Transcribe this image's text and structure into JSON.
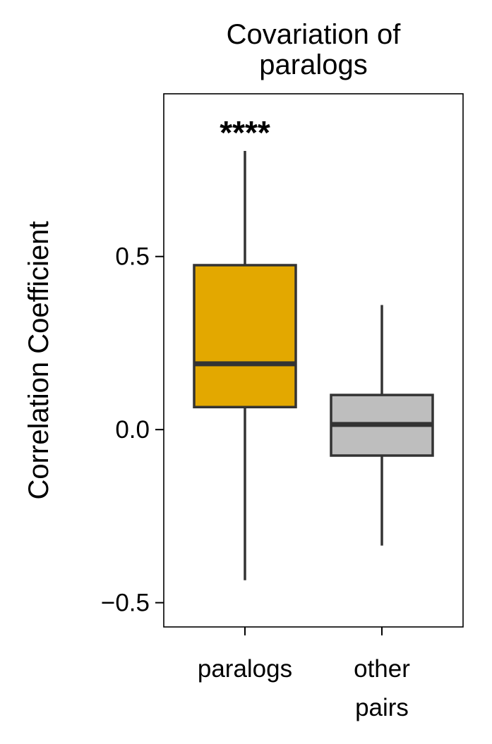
{
  "chart_data": {
    "type": "box",
    "title_lines": [
      "Covariation of",
      "paralogs"
    ],
    "xlabel": "",
    "ylabel": "Correlation Coefficient",
    "ylim": [
      -0.57,
      0.97
    ],
    "yticks": [
      -0.5,
      0.0,
      0.5
    ],
    "ytick_labels": [
      "−0.5",
      "0.0",
      "0.5"
    ],
    "grid": false,
    "legend": "none",
    "categories": [
      {
        "label_lines": [
          "paralogs"
        ]
      },
      {
        "label_lines": [
          "other",
          "pairs"
        ]
      }
    ],
    "boxes": [
      {
        "whisker_low": -0.435,
        "q1": 0.065,
        "median": 0.19,
        "q3": 0.475,
        "whisker_high": 0.805,
        "color": "#E3A800"
      },
      {
        "whisker_low": -0.335,
        "q1": -0.075,
        "median": 0.015,
        "q3": 0.1,
        "whisker_high": 0.36,
        "color": "#BEBEBE"
      }
    ],
    "annotations": [
      {
        "text": "****",
        "category_index": 0,
        "y": 0.87
      }
    ],
    "line_color": "#333333"
  }
}
